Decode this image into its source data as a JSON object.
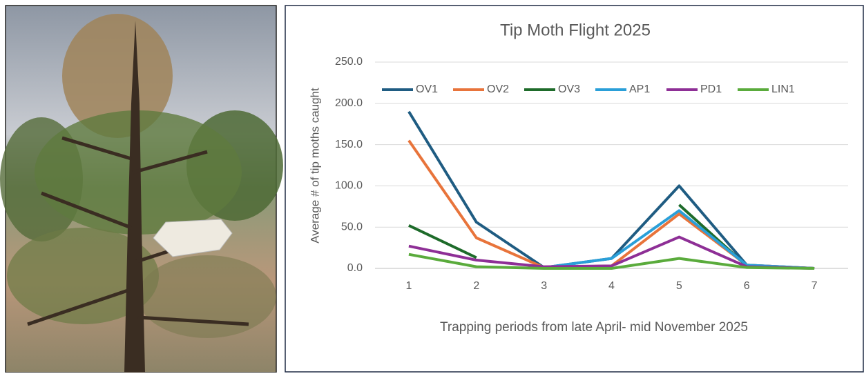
{
  "chart_data": {
    "type": "line",
    "title": "Tip Moth Flight 2025",
    "x_label": "Trapping periods from late April- mid November 2025",
    "y_label": "Average # of tip moths caught",
    "categories": [
      "1",
      "2",
      "3",
      "4",
      "5",
      "6",
      "7"
    ],
    "series": [
      {
        "name": "OV1",
        "color": "#1f5c82",
        "values": [
          190,
          56,
          1,
          12,
          100,
          4,
          0
        ]
      },
      {
        "name": "OV2",
        "color": "#e8743b",
        "values": [
          155,
          37,
          1,
          3,
          66,
          4,
          0
        ]
      },
      {
        "name": "OV3",
        "color": "#1e6b2a",
        "values": [
          52,
          13,
          null,
          null,
          77,
          3,
          0
        ]
      },
      {
        "name": "AP1",
        "color": "#2a9fd8",
        "values": [
          null,
          null,
          1,
          12,
          70,
          4,
          0
        ]
      },
      {
        "name": "PD1",
        "color": "#8e2f96",
        "values": [
          27,
          10,
          2,
          3,
          38,
          2,
          0
        ]
      },
      {
        "name": "LIN1",
        "color": "#5aab3c",
        "values": [
          17,
          2,
          0,
          0,
          12,
          1,
          0
        ]
      }
    ],
    "ylim": [
      0,
      250
    ],
    "yticks": [
      {
        "value": 0,
        "label": "0.0"
      },
      {
        "value": 50,
        "label": "50.0"
      },
      {
        "value": 100,
        "label": "100.0"
      },
      {
        "value": 150,
        "label": "150.0"
      },
      {
        "value": 200,
        "label": "200.0"
      },
      {
        "value": 250,
        "label": "250.0"
      }
    ],
    "grid": true,
    "legend": "top"
  }
}
